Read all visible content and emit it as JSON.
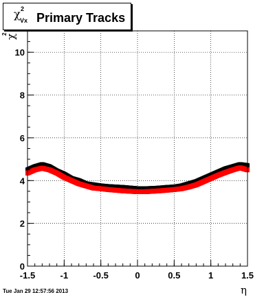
{
  "title": {
    "symbol": "χ",
    "superscript": "2",
    "subscript": "Vx",
    "text": "Primary Tracks"
  },
  "ylabel": {
    "symbol": "χ",
    "superscript": "2"
  },
  "xlabel": "η",
  "timestamp": "Tue Jan 29 12:57:56 2013",
  "chart_data": {
    "type": "scatter",
    "xlim": [
      -1.5,
      1.5
    ],
    "ylim": [
      0,
      11
    ],
    "xticks": [
      "-1.5",
      "-1",
      "-0.5",
      "0",
      "0.5",
      "1",
      "1.5"
    ],
    "yticks": [
      "0",
      "2",
      "4",
      "6",
      "8",
      "10"
    ],
    "grid": true,
    "series": [
      {
        "color": "#000000",
        "x": [
          -1.5,
          -1.4,
          -1.3,
          -1.2,
          -1.1,
          -1.0,
          -0.9,
          -0.8,
          -0.7,
          -0.6,
          -0.5,
          -0.4,
          -0.3,
          -0.2,
          -0.1,
          0.0,
          0.1,
          0.2,
          0.3,
          0.4,
          0.5,
          0.6,
          0.7,
          0.8,
          0.9,
          1.0,
          1.1,
          1.2,
          1.3,
          1.4,
          1.5
        ],
        "y": [
          4.5,
          4.65,
          4.75,
          4.65,
          4.45,
          4.3,
          4.1,
          4.0,
          3.85,
          3.8,
          3.75,
          3.72,
          3.7,
          3.68,
          3.65,
          3.62,
          3.62,
          3.63,
          3.65,
          3.68,
          3.7,
          3.75,
          3.85,
          3.95,
          4.1,
          4.25,
          4.4,
          4.55,
          4.65,
          4.75,
          4.7
        ]
      },
      {
        "color": "#ff0000",
        "x": [
          -1.5,
          -1.4,
          -1.3,
          -1.2,
          -1.1,
          -1.0,
          -0.9,
          -0.8,
          -0.7,
          -0.6,
          -0.5,
          -0.4,
          -0.3,
          -0.2,
          -0.1,
          0.0,
          0.1,
          0.2,
          0.3,
          0.4,
          0.5,
          0.6,
          0.7,
          0.8,
          0.9,
          1.0,
          1.1,
          1.2,
          1.3,
          1.4,
          1.5
        ],
        "y": [
          4.35,
          4.5,
          4.58,
          4.5,
          4.35,
          4.15,
          4.0,
          3.85,
          3.75,
          3.65,
          3.62,
          3.58,
          3.55,
          3.52,
          3.5,
          3.48,
          3.48,
          3.5,
          3.52,
          3.55,
          3.58,
          3.62,
          3.7,
          3.8,
          3.95,
          4.1,
          4.25,
          4.38,
          4.5,
          4.6,
          4.5
        ]
      }
    ]
  }
}
